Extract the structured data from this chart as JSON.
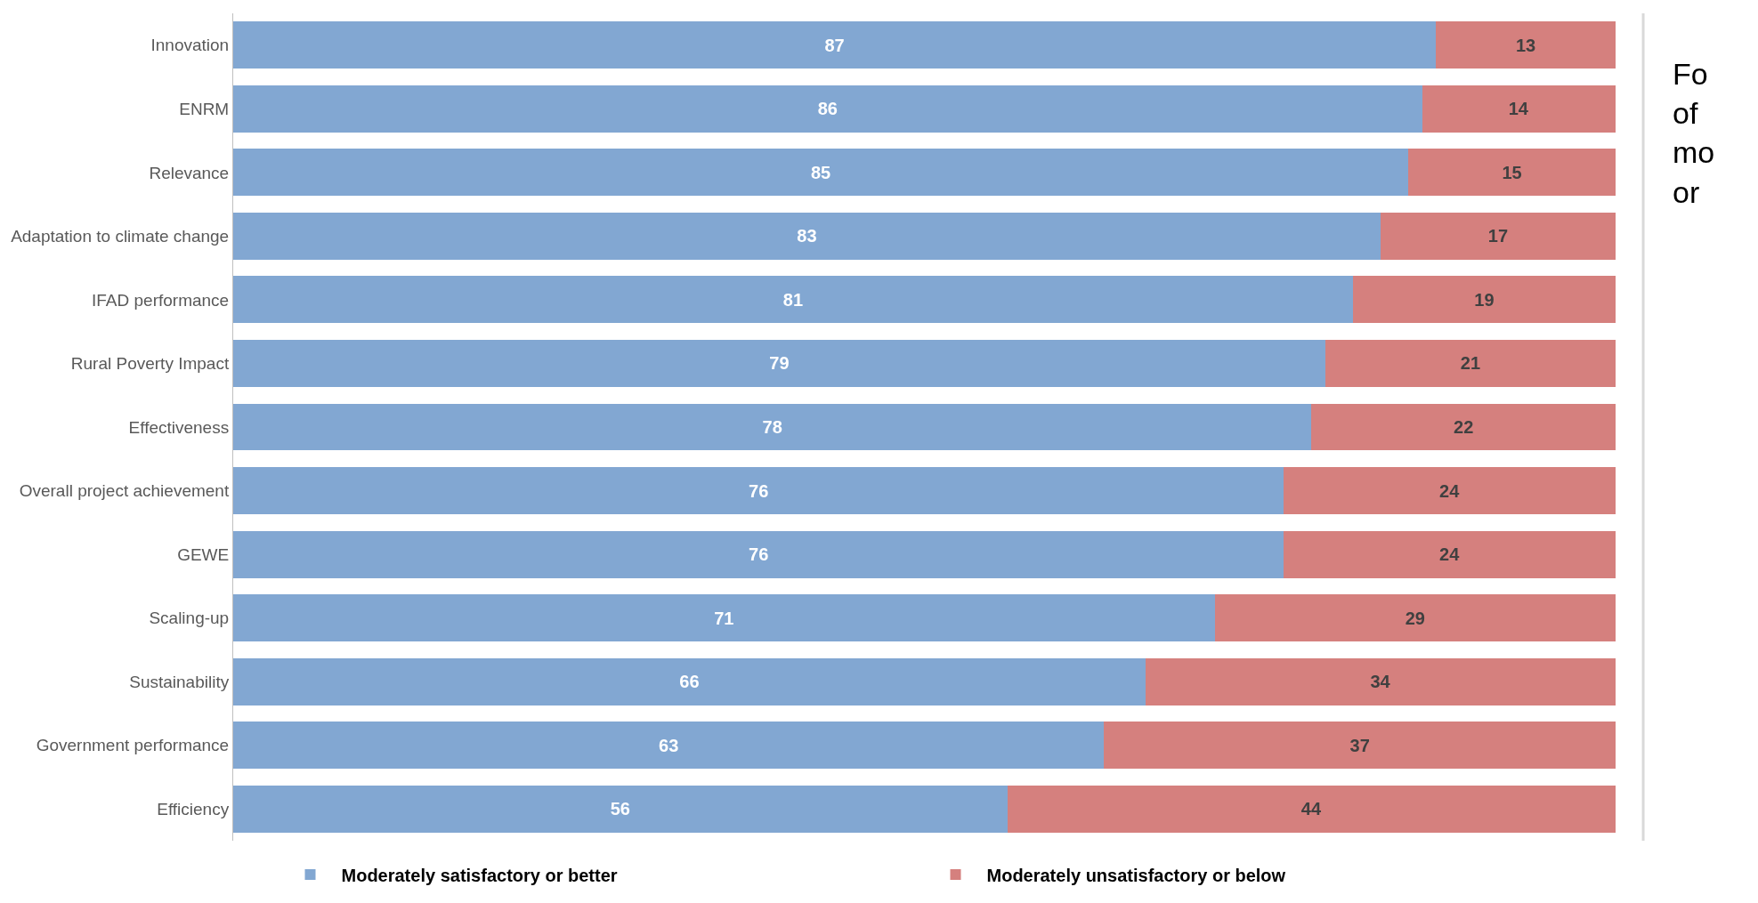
{
  "chart_data": {
    "type": "bar",
    "orientation": "horizontal",
    "stacked": true,
    "data_labels": true,
    "xlim": [
      0,
      100
    ],
    "tick_labels": "y",
    "legend": "bottom",
    "categories": [
      "Innovation",
      "ENRM",
      "Relevance",
      "Adaptation to climate change",
      "IFAD performance",
      "Rural Poverty Impact",
      "Effectiveness",
      "Overall project achievement",
      "GEWE",
      "Scaling-up",
      "Sustainability",
      "Government performance",
      "Efficiency"
    ],
    "series": [
      {
        "name": "Moderately satisfactory or better",
        "color": "#82a7d2",
        "values": [
          87,
          86,
          85,
          83,
          81,
          79,
          78,
          76,
          76,
          71,
          66,
          63,
          56
        ]
      },
      {
        "name": "Moderately unsatisfactory or below",
        "color": "#d5807e",
        "values": [
          13,
          14,
          15,
          17,
          19,
          21,
          22,
          24,
          24,
          29,
          34,
          37,
          44
        ]
      }
    ],
    "annotations": [
      "Fo of mo or"
    ]
  }
}
